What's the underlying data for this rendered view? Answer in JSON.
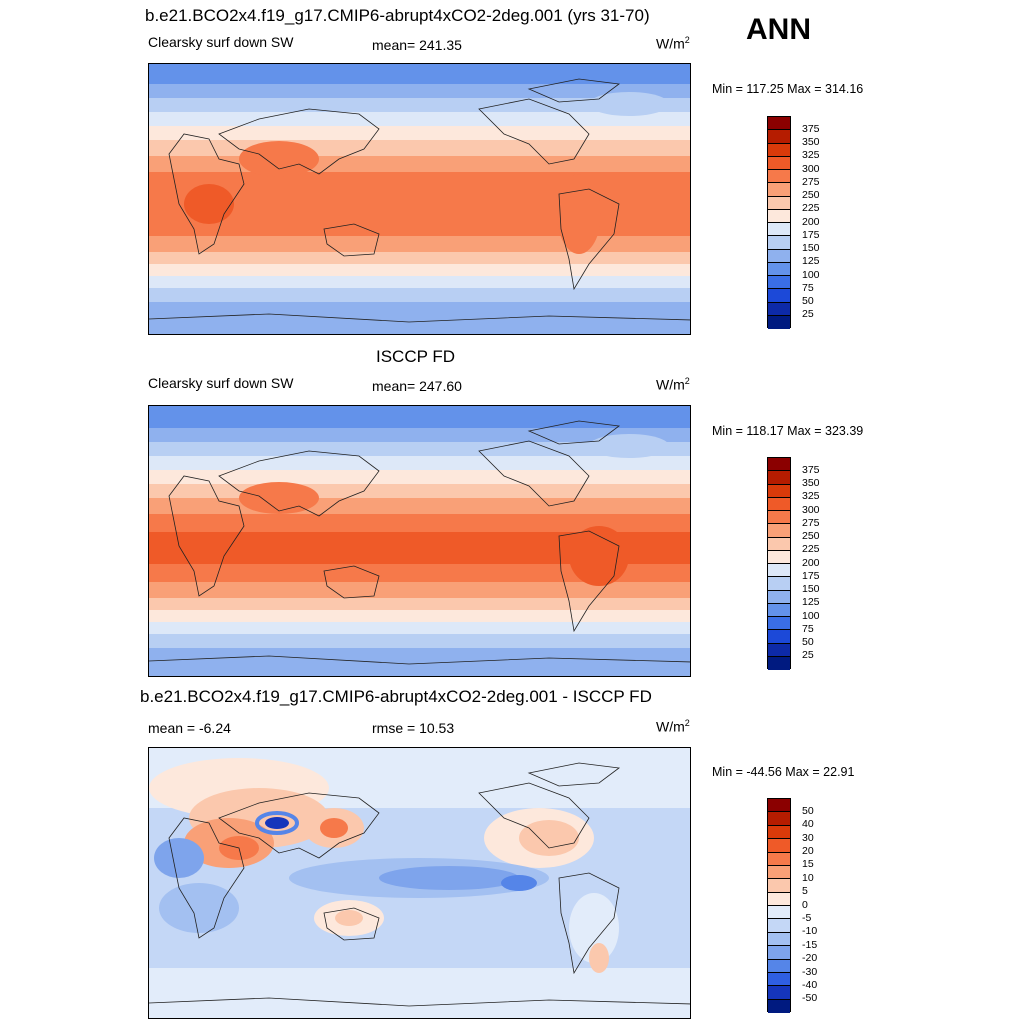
{
  "season": "ANN",
  "panels": [
    {
      "title": "b.e21.BCO2x4.f19_g17.CMIP6-abrupt4xCO2-2deg.001 (yrs 31-70)",
      "left_label": "Clearsky surf down SW",
      "center_label": "mean= 241.35",
      "units": "W/m",
      "units_exp": "2",
      "minmax": "Min = 117.25 Max = 314.16",
      "colorbar_labels": [
        "375",
        "350",
        "325",
        "300",
        "275",
        "250",
        "225",
        "200",
        "175",
        "150",
        "125",
        "100",
        "75",
        "50",
        "25"
      ]
    },
    {
      "title": "ISCCP FD",
      "left_label": "Clearsky surf down SW",
      "center_label": "mean= 247.60",
      "units": "W/m",
      "units_exp": "2",
      "minmax": "Min = 118.17 Max = 323.39",
      "colorbar_labels": [
        "375",
        "350",
        "325",
        "300",
        "275",
        "250",
        "225",
        "200",
        "175",
        "150",
        "125",
        "100",
        "75",
        "50",
        "25"
      ]
    },
    {
      "title": "b.e21.BCO2x4.f19_g17.CMIP6-abrupt4xCO2-2deg.001 - ISCCP FD",
      "left_label": "mean =  -6.24",
      "center_label": "rmse =  10.53",
      "units": "W/m",
      "units_exp": "2",
      "minmax": "Min = -44.56 Max =  22.91",
      "colorbar_labels": [
        "50",
        "40",
        "30",
        "20",
        "15",
        "10",
        "5",
        "0",
        "-5",
        "-10",
        "-15",
        "-20",
        "-30",
        "-40",
        "-50"
      ]
    }
  ],
  "colors": {
    "sequential": [
      "#8b0000",
      "#b51c00",
      "#d93a0a",
      "#ef5a28",
      "#f6794a",
      "#f9a077",
      "#fbc8ad",
      "#fde8dc",
      "#dde8f8",
      "#b8cff3",
      "#8fb1ee",
      "#6392ea",
      "#3a6ee6",
      "#1c49d8",
      "#0d2aa8",
      "#001a80"
    ],
    "diverging": [
      "#8b0000",
      "#b51c00",
      "#d93a0a",
      "#ef5a28",
      "#f6794a",
      "#f9a077",
      "#fbc8ad",
      "#fde8dc",
      "#e2ecfa",
      "#c4d7f6",
      "#a3c0f1",
      "#7ea4ec",
      "#5585e8",
      "#2f5fe2",
      "#1535bb",
      "#001a80"
    ]
  }
}
